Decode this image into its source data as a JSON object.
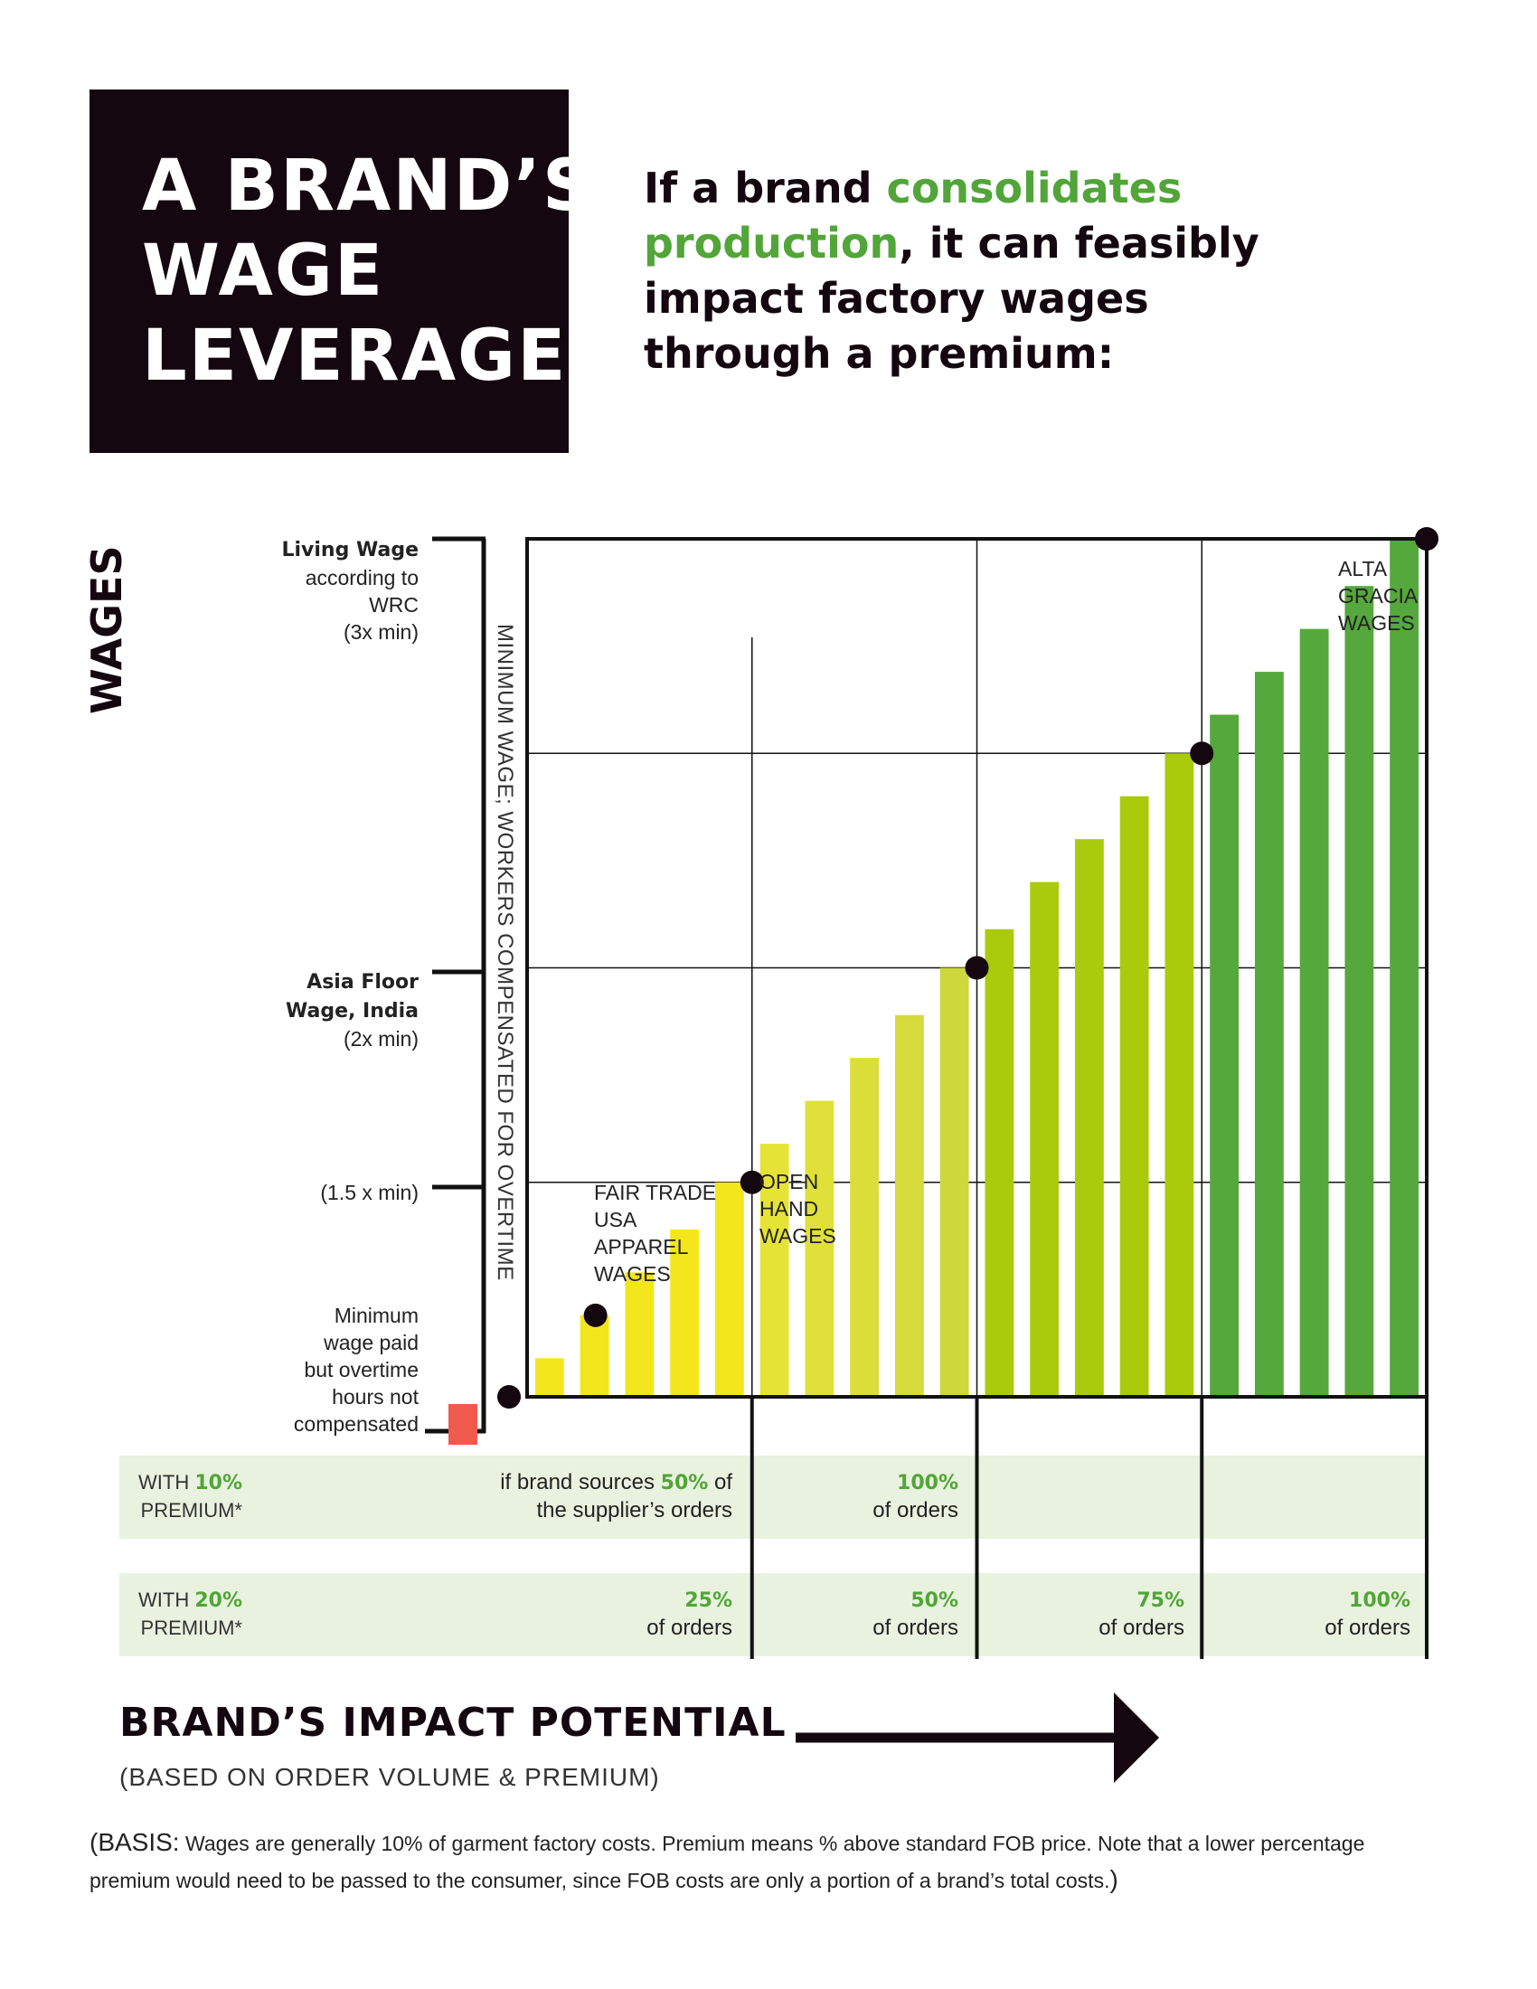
{
  "title": {
    "line1": "A BRAND’S",
    "line2": "WAGE",
    "line3": "LEVERAGE"
  },
  "subtitle": {
    "part1": "If a brand ",
    "highlight": "consolidates production",
    "part2": ", it can feasibly impact factory wages through a premium:"
  },
  "y_axis": {
    "title": "WAGES",
    "living_bold": "Living Wage",
    "living_rest": [
      "according to",
      "WRC",
      "(3x min)"
    ],
    "asia_bold": [
      "Asia Floor",
      "Wage, India"
    ],
    "asia_rest": "(2x min)",
    "onehalf": "(1.5 x min)",
    "minimum": [
      "Minimum",
      "wage paid",
      "but overtime",
      "hours not",
      "compensated"
    ],
    "minimum_overtime": "MINIMUM WAGE; WORKERS COMPENSATED FOR OVERTIME"
  },
  "chart_data": {
    "type": "bar",
    "colors": {
      "bars": [
        "#f3e61c",
        "#f3e61c",
        "#f3e61c",
        "#f3e61c",
        "#f3e61c",
        "#e6e337",
        "#e0e03a",
        "#dbdd3a",
        "#d4db3a",
        "#cdd83a",
        "#aacb0c",
        "#aacb0c",
        "#aacb0c",
        "#aacb0c",
        "#aacb0c",
        "#55a83b",
        "#55a83b",
        "#55a83b",
        "#55a83b",
        "#55a83b"
      ],
      "marker": "#14070f",
      "below_min": "#ef5a4d"
    },
    "values": [
      1.09,
      1.19,
      1.29,
      1.39,
      1.5,
      1.59,
      1.69,
      1.79,
      1.89,
      2.0,
      2.09,
      2.2,
      2.3,
      2.4,
      2.5,
      2.59,
      2.69,
      2.79,
      2.89,
      3.0
    ],
    "ylim": [
      1.0,
      3.0
    ],
    "markers": [
      {
        "index": 0,
        "y": 1.0,
        "label": ""
      },
      {
        "index": 1,
        "y": 1.19,
        "label": "FAIR TRADE USA APPAREL WAGES"
      },
      {
        "index": 4,
        "y": 1.5,
        "label": "OPEN HAND WAGES"
      },
      {
        "index": 9,
        "y": 2.0,
        "label": ""
      },
      {
        "index": 14,
        "y": 2.5,
        "label": ""
      },
      {
        "index": 19,
        "y": 3.0,
        "label": "ALTA GRACIA WAGES"
      }
    ],
    "annotation_lines": {
      "fair_trade": [
        "FAIR TRADE",
        "USA",
        "APPAREL",
        "WAGES"
      ],
      "open_hand": [
        "OPEN",
        "HAND",
        "WAGES"
      ],
      "alta_gracia": [
        "ALTA",
        "GRACIA",
        "WAGES"
      ]
    },
    "grid": true
  },
  "table": {
    "row1_label": {
      "pre": "WITH ",
      "pct": "10%",
      "post": "PREMIUM*"
    },
    "row1_cells": [
      {
        "pre": "if brand sources ",
        "pct": "50%",
        "post": " of",
        "line2": "the supplier’s orders"
      },
      {
        "pct": "100%",
        "line2": "of orders"
      }
    ],
    "row2_label": {
      "pre": "WITH ",
      "pct": "20%",
      "post": "PREMIUM*"
    },
    "row2_cells": [
      {
        "pct": "25%",
        "line2": "of orders"
      },
      {
        "pct": "50%",
        "line2": "of orders"
      },
      {
        "pct": "75%",
        "line2": "of orders"
      },
      {
        "pct": "100%",
        "line2": "of orders"
      }
    ]
  },
  "impact": {
    "title": "BRAND’S IMPACT POTENTIAL",
    "subtitle": "(BASED ON ORDER VOLUME & PREMIUM)"
  },
  "basis": {
    "open": "(",
    "key": "BASIS:",
    "text": "  Wages are generally 10% of garment factory costs.  Premium means % above standard FOB price.  Note that a lower percentage premium would need to be passed to the consumer, since FOB costs are only a portion of a brand’s total costs.",
    "close": ")"
  }
}
